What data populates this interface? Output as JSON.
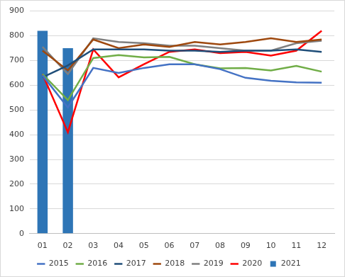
{
  "chart_data": {
    "type": "bar",
    "categories": [
      "01",
      "02",
      "03",
      "04",
      "05",
      "06",
      "07",
      "08",
      "09",
      "10",
      "11",
      "12"
    ],
    "series": [
      {
        "name": "2021",
        "type": "bar",
        "color": "#2e75b6",
        "values": [
          820,
          750,
          null,
          null,
          null,
          null,
          null,
          null,
          null,
          null,
          null,
          null
        ]
      },
      {
        "name": "2015",
        "type": "line",
        "color": "#4472c4",
        "marker": "none",
        "values": [
          640,
          510,
          670,
          650,
          670,
          685,
          685,
          665,
          630,
          618,
          612,
          610
        ]
      },
      {
        "name": "2016",
        "type": "line",
        "color": "#70ad47",
        "marker": "none",
        "values": [
          645,
          540,
          710,
          722,
          713,
          715,
          685,
          668,
          670,
          660,
          678,
          655
        ]
      },
      {
        "name": "2017",
        "type": "line",
        "color": "#1f4e79",
        "marker": "none",
        "values": [
          632,
          680,
          745,
          745,
          745,
          740,
          740,
          735,
          740,
          740,
          745,
          735
        ]
      },
      {
        "name": "2018",
        "type": "line",
        "color": "#9e480e",
        "marker": "none",
        "values": [
          740,
          660,
          785,
          750,
          765,
          755,
          775,
          765,
          775,
          790,
          775,
          785
        ]
      },
      {
        "name": "2019",
        "type": "line",
        "color": "#7f7f7f",
        "marker": "none",
        "values": [
          755,
          645,
          790,
          775,
          770,
          760,
          760,
          750,
          740,
          740,
          770,
          780
        ]
      },
      {
        "name": "2020",
        "type": "line",
        "color": "#ff0000",
        "marker": "none",
        "values": [
          645,
          410,
          745,
          632,
          685,
          735,
          745,
          730,
          735,
          720,
          740,
          820
        ]
      }
    ],
    "ylim": [
      0,
      900
    ],
    "yticks": [
      0,
      100,
      200,
      300,
      400,
      500,
      600,
      700,
      800,
      900
    ],
    "grid": true,
    "legend": "bottom"
  }
}
